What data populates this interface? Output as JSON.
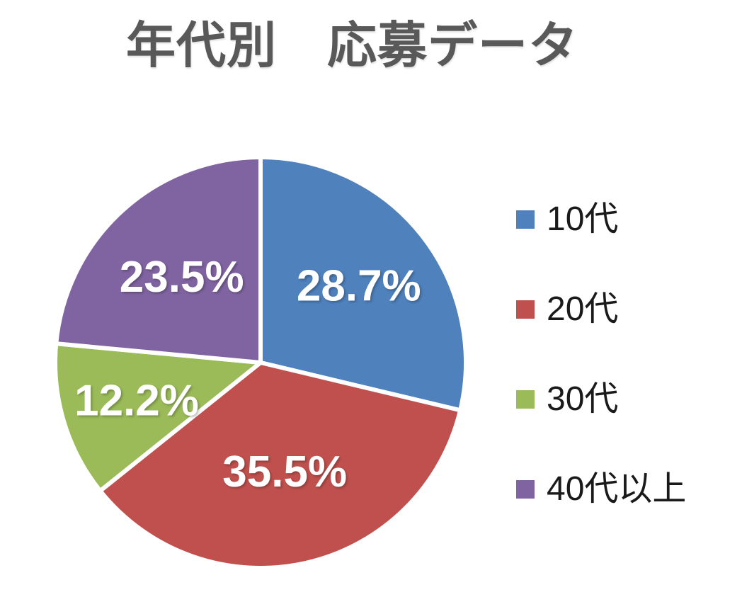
{
  "page": {
    "background_color": "#ffffff"
  },
  "chart_data": {
    "type": "pie",
    "title": "年代別　応募データ",
    "title_color": "#595959",
    "labels": [
      "10代",
      "20代",
      "30代",
      "40代以上"
    ],
    "values": [
      28.7,
      35.5,
      12.2,
      23.5
    ],
    "value_labels": [
      "28.7%",
      "35.5%",
      "12.2%",
      "23.5%"
    ],
    "colors": [
      "#4F81BD",
      "#C0504D",
      "#9BBB59",
      "#8064A2"
    ],
    "unit": "%",
    "start_angle_deg": 0,
    "direction": "clockwise",
    "slice_separator_color": "#FFFFFF",
    "slice_label_color": "#FFFFFF",
    "legend_position": "right",
    "legend_text_color": "#1A1A1A",
    "grid": false
  }
}
